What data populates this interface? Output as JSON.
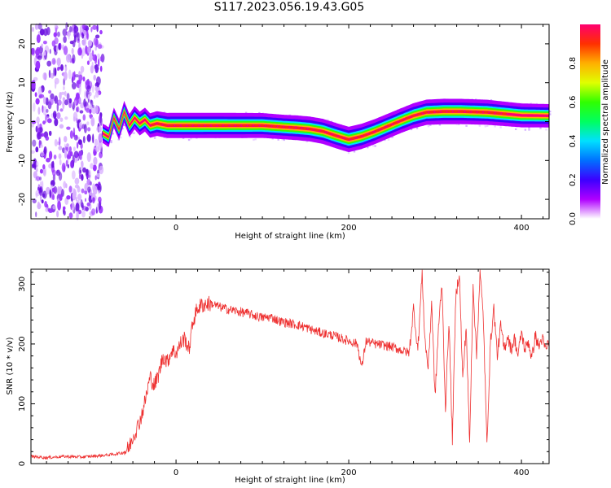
{
  "title": "S117.2023.056.19.43.G05",
  "chart_data": [
    {
      "type": "heatmap",
      "title": "",
      "xlabel": "Height of straight line (km)",
      "ylabel": "Frequency (Hz)",
      "xlim": [
        -168,
        432
      ],
      "ylim": [
        -25,
        25
      ],
      "xticks": [
        0,
        200,
        400
      ],
      "yticks": [
        -20,
        -10,
        0,
        10,
        20
      ],
      "grid": false,
      "noise_region_x": [
        -168,
        -83
      ],
      "ridge": {
        "x": [
          -85,
          -78,
          -72,
          -66,
          -60,
          -54,
          -48,
          -42,
          -36,
          -30,
          -22,
          -10,
          0,
          25,
          50,
          75,
          100,
          125,
          140,
          155,
          170,
          185,
          200,
          215,
          230,
          245,
          260,
          275,
          290,
          310,
          330,
          360,
          380,
          400,
          432
        ],
        "freq": [
          -3,
          -4,
          1,
          -2,
          2.5,
          -1,
          1,
          -0.5,
          0.5,
          -1,
          -0.5,
          -1,
          -1,
          -1,
          -1,
          -1,
          -1,
          -1.4,
          -1.6,
          -1.9,
          -2.5,
          -3.6,
          -4.6,
          -3.8,
          -2.6,
          -1.2,
          0.2,
          1.5,
          2.4,
          2.6,
          2.6,
          2.4,
          2.0,
          1.6,
          1.5
        ],
        "amplitude": [
          0.45,
          0.5,
          0.55,
          0.6,
          0.7,
          0.75,
          0.8,
          0.85,
          0.85,
          0.9,
          0.92,
          0.95,
          0.97,
          0.97,
          0.96,
          0.95,
          0.93,
          0.9,
          0.92,
          0.93,
          0.95,
          0.97,
          0.98,
          0.97,
          0.95,
          0.93,
          0.92,
          0.95,
          0.97,
          0.98,
          0.97,
          0.95,
          0.9,
          0.85,
          0.8
        ]
      },
      "colorbar": {
        "label": "Normalized spectral amplitude",
        "ticks": [
          "0.0",
          "0.2",
          "0.4",
          "0.6",
          "0.8"
        ],
        "range": [
          0,
          1
        ],
        "colors": [
          "#ffffff",
          "#b000ff",
          "#3c00ff",
          "#0070ff",
          "#00e0ff",
          "#00ff60",
          "#30ff00",
          "#e0ff00",
          "#ffb000",
          "#ff3000",
          "#ff0070"
        ]
      }
    },
    {
      "type": "line",
      "title": "",
      "xlabel": "Height of straight line (km)",
      "ylabel": "SNR (10 * v/v)",
      "xlim": [
        -168,
        432
      ],
      "ylim": [
        0,
        325
      ],
      "xticks": [
        0,
        200,
        400
      ],
      "yticks": [
        0,
        100,
        200,
        300
      ],
      "grid": false,
      "series": [
        {
          "color": "#ee3030",
          "x": [
            -168,
            -150,
            -130,
            -110,
            -90,
            -75,
            -62,
            -55,
            -50,
            -45,
            -40,
            -35,
            -30,
            -25,
            -20,
            -15,
            -10,
            -5,
            0,
            5,
            10,
            15,
            20,
            25,
            30,
            40,
            50,
            60,
            70,
            80,
            90,
            100,
            110,
            120,
            130,
            140,
            150,
            160,
            170,
            180,
            190,
            200,
            210,
            215,
            220,
            230,
            240,
            250,
            260,
            270,
            275,
            280,
            285,
            288,
            292,
            296,
            300,
            304,
            308,
            312,
            316,
            320,
            324,
            328,
            332,
            336,
            340,
            344,
            348,
            352,
            356,
            360,
            364,
            368,
            372,
            376,
            380,
            384,
            388,
            392,
            396,
            400,
            404,
            408,
            412,
            416,
            420,
            424,
            428,
            432
          ],
          "y": [
            12,
            10,
            12,
            11,
            13,
            15,
            18,
            25,
            45,
            60,
            80,
            110,
            145,
            130,
            150,
            180,
            170,
            190,
            185,
            200,
            210,
            190,
            240,
            260,
            265,
            268,
            262,
            258,
            255,
            252,
            248,
            244,
            245,
            238,
            235,
            232,
            228,
            222,
            218,
            215,
            210,
            205,
            200,
            160,
            205,
            200,
            198,
            195,
            190,
            185,
            260,
            190,
            320,
            210,
            160,
            270,
            110,
            230,
            300,
            90,
            240,
            40,
            280,
            320,
            140,
            230,
            30,
            300,
            180,
            320,
            240,
            30,
            200,
            260,
            180,
            230,
            190,
            215,
            190,
            210,
            180,
            220,
            190,
            205,
            175,
            215,
            195,
            210,
            190,
            205
          ]
        }
      ]
    }
  ]
}
